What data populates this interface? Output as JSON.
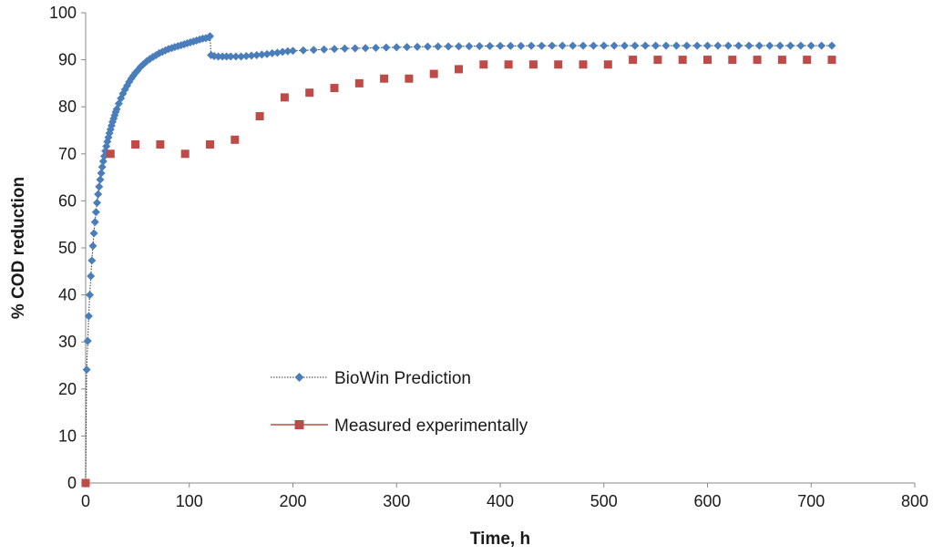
{
  "chart_data": {
    "type": "scatter",
    "xlabel": "Time, h",
    "ylabel": "% COD reduction",
    "xlim": [
      0,
      800
    ],
    "ylim": [
      0,
      100
    ],
    "xticks": [
      0,
      100,
      200,
      300,
      400,
      500,
      600,
      700,
      800
    ],
    "yticks": [
      0,
      10,
      20,
      30,
      40,
      50,
      60,
      70,
      80,
      90,
      100
    ],
    "grid": false,
    "legend_position": "bottom-center",
    "series": [
      {
        "name": "BioWin Prediction",
        "marker": "diamond",
        "line": "dotted",
        "color": "#4a7ebb",
        "x": [
          0,
          1,
          2,
          3,
          4,
          5,
          6,
          7,
          8,
          9,
          10,
          11,
          12,
          13,
          14,
          15,
          16,
          17,
          18,
          19,
          20,
          21,
          22,
          23,
          24,
          25,
          26,
          27,
          28,
          29,
          30,
          32,
          34,
          36,
          38,
          40,
          42,
          44,
          46,
          48,
          50,
          53,
          56,
          59,
          62,
          65,
          68,
          71,
          74,
          77,
          80,
          83,
          86,
          89,
          92,
          95,
          98,
          101,
          104,
          107,
          110,
          113,
          116,
          119,
          120,
          121,
          124,
          128,
          132,
          136,
          140,
          145,
          150,
          155,
          160,
          165,
          170,
          175,
          180,
          185,
          190,
          195,
          200,
          210,
          220,
          230,
          240,
          250,
          260,
          270,
          280,
          290,
          300,
          310,
          320,
          330,
          340,
          350,
          360,
          370,
          380,
          390,
          400,
          410,
          420,
          430,
          440,
          450,
          460,
          470,
          480,
          490,
          500,
          510,
          520,
          530,
          540,
          550,
          560,
          570,
          580,
          590,
          600,
          610,
          620,
          630,
          640,
          650,
          660,
          670,
          680,
          690,
          700,
          710,
          720
        ],
        "y": [
          0,
          24.1,
          30.2,
          35.5,
          40.0,
          44.0,
          47.3,
          50.4,
          53.1,
          55.5,
          57.6,
          59.6,
          61.4,
          63.0,
          64.5,
          65.9,
          67.2,
          68.4,
          69.5,
          70.6,
          71.6,
          72.6,
          73.5,
          74.4,
          75.2,
          76.0,
          76.8,
          77.5,
          78.2,
          78.9,
          79.5,
          80.7,
          81.8,
          82.8,
          83.7,
          84.5,
          85.3,
          86.0,
          86.6,
          87.2,
          87.7,
          88.5,
          89.1,
          89.7,
          90.2,
          90.6,
          91.0,
          91.4,
          91.7,
          92.0,
          92.3,
          92.5,
          92.7,
          92.9,
          93.1,
          93.3,
          93.5,
          93.7,
          93.9,
          94.1,
          94.3,
          94.5,
          94.6,
          94.8,
          95.0,
          91.0,
          90.8,
          90.7,
          90.7,
          90.7,
          90.7,
          90.7,
          90.7,
          90.8,
          90.9,
          91.0,
          91.1,
          91.2,
          91.4,
          91.5,
          91.7,
          91.8,
          91.9,
          92.0,
          92.1,
          92.2,
          92.3,
          92.4,
          92.45,
          92.5,
          92.55,
          92.6,
          92.65,
          92.7,
          92.75,
          92.8,
          92.82,
          92.84,
          92.86,
          92.88,
          92.9,
          92.92,
          92.94,
          92.95,
          92.96,
          92.97,
          92.98,
          92.99,
          93.0,
          93.0,
          93.0,
          93.0,
          93.0,
          93.0,
          93.0,
          93.0,
          93.0,
          93.0,
          93.0,
          93.0,
          93.0,
          93.0,
          93.0,
          93.0,
          93.0,
          93.0,
          93.0,
          93.0,
          93.0,
          93.0,
          93.0,
          93.0,
          93.0,
          93.0,
          93.0
        ]
      },
      {
        "name": "Measured experimentally",
        "marker": "square",
        "line": "none",
        "color": "#be4b48",
        "x": [
          0,
          24,
          48,
          72,
          96,
          120,
          144,
          168,
          192,
          216,
          240,
          264,
          288,
          312,
          336,
          360,
          384,
          408,
          432,
          456,
          480,
          504,
          528,
          552,
          576,
          600,
          624,
          648,
          672,
          696,
          720
        ],
        "y": [
          0,
          70,
          72,
          72,
          70,
          72,
          73,
          78,
          82,
          83,
          84,
          85,
          86,
          86,
          87,
          88,
          89,
          89,
          89,
          89,
          89,
          89,
          90,
          90,
          90,
          90,
          90,
          90,
          90,
          90,
          90
        ]
      }
    ]
  }
}
